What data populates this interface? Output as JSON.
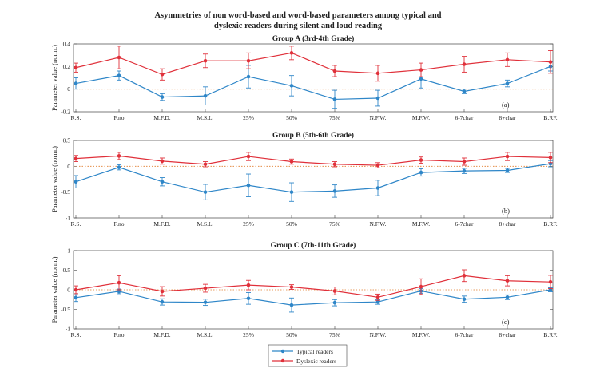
{
  "title_line1": "Asymmetries of non word-based and word-based parameters among typical and",
  "title_line2": "dyslexic readers during silent and loud reading",
  "colors": {
    "typical": "#2e86c8",
    "dyslexic": "#e0303a",
    "zero_line": "#e07b2a"
  },
  "legend": {
    "typical": "Typical readers",
    "dyslexic": "Dyslexic readers"
  },
  "chart_data": [
    {
      "type": "line",
      "title": "Group A (3rd-4th Grade)",
      "panel_label": "(a)",
      "ylabel": "Parameter value (norm.)",
      "ylim": [
        -0.2,
        0.4
      ],
      "yticks": [
        "-0.2",
        "0",
        "0.2",
        "0.4"
      ],
      "ytick_values": [
        -0.2,
        0,
        0.2,
        0.4
      ],
      "categories": [
        "R.S.",
        "F.no",
        "M.F.D.",
        "M.S.L.",
        "25%",
        "50%",
        "75%",
        "N.F.W.",
        "M.F.W.",
        "6-7char",
        "8+char",
        "B.RF."
      ],
      "series": [
        {
          "name": "Typical readers",
          "values": [
            0.05,
            0.12,
            -0.07,
            -0.06,
            0.11,
            0.03,
            -0.09,
            -0.08,
            0.09,
            -0.02,
            0.05,
            0.2
          ],
          "errors": [
            0.05,
            0.04,
            0.03,
            0.08,
            0.1,
            0.09,
            0.08,
            0.07,
            0.08,
            0.02,
            0.03,
            0.04
          ]
        },
        {
          "name": "Dyslexic readers",
          "values": [
            0.19,
            0.28,
            0.13,
            0.25,
            0.25,
            0.32,
            0.16,
            0.14,
            0.17,
            0.22,
            0.26,
            0.24
          ],
          "errors": [
            0.04,
            0.1,
            0.05,
            0.06,
            0.07,
            0.06,
            0.05,
            0.07,
            0.06,
            0.07,
            0.06,
            0.1
          ]
        }
      ]
    },
    {
      "type": "line",
      "title": "Group B (5th-6th Grade)",
      "panel_label": "(b)",
      "ylabel": "Parameter value (norm.)",
      "ylim": [
        -1,
        0.5
      ],
      "yticks": [
        "-1",
        "-0.5",
        "0",
        "0.5"
      ],
      "ytick_values": [
        -1,
        -0.5,
        0,
        0.5
      ],
      "categories": [
        "R.S.",
        "F.no",
        "M.F.D.",
        "M.S.L.",
        "25%",
        "50%",
        "75%",
        "N.F.W.",
        "M.F.W.",
        "6-7char",
        "8+char",
        "B.RF."
      ],
      "series": [
        {
          "name": "Typical readers",
          "values": [
            -0.3,
            -0.02,
            -0.3,
            -0.5,
            -0.37,
            -0.5,
            -0.48,
            -0.42,
            -0.12,
            -0.09,
            -0.08,
            0.05
          ],
          "errors": [
            0.12,
            0.05,
            0.08,
            0.15,
            0.22,
            0.18,
            0.12,
            0.15,
            0.07,
            0.05,
            0.04,
            0.06
          ]
        },
        {
          "name": "Dyslexic readers",
          "values": [
            0.15,
            0.2,
            0.1,
            0.04,
            0.19,
            0.09,
            0.04,
            0.02,
            0.12,
            0.09,
            0.19,
            0.17
          ],
          "errors": [
            0.06,
            0.07,
            0.06,
            0.05,
            0.08,
            0.05,
            0.05,
            0.05,
            0.06,
            0.07,
            0.08,
            0.1
          ]
        }
      ]
    },
    {
      "type": "line",
      "title": "Group C (7th-11th Grade)",
      "panel_label": "(c)",
      "ylabel": "Parameter value (norm.)",
      "ylim": [
        -1,
        1
      ],
      "yticks": [
        "-1",
        "-0.5",
        "0",
        "0.5",
        "1"
      ],
      "ytick_values": [
        -1,
        -0.5,
        0,
        0.5,
        1
      ],
      "categories": [
        "R.S.",
        "F.no",
        "M.F.D.",
        "M.S.L.",
        "25%",
        "50%",
        "75%",
        "N.F.W.",
        "M.F.W.",
        "6-7char",
        "8+char",
        "B.RF."
      ],
      "series": [
        {
          "name": "Typical readers",
          "values": [
            -0.2,
            -0.04,
            -0.31,
            -0.32,
            -0.22,
            -0.39,
            -0.33,
            -0.31,
            -0.03,
            -0.24,
            -0.19,
            0.0
          ],
          "errors": [
            0.1,
            0.06,
            0.08,
            0.08,
            0.15,
            0.18,
            0.08,
            0.06,
            0.06,
            0.08,
            0.06,
            0.05
          ]
        },
        {
          "name": "Dyslexic readers",
          "values": [
            0.0,
            0.18,
            -0.04,
            0.04,
            0.12,
            0.07,
            -0.03,
            -0.19,
            0.08,
            0.36,
            0.23,
            0.2
          ],
          "errors": [
            0.1,
            0.18,
            0.12,
            0.1,
            0.12,
            0.06,
            0.1,
            0.08,
            0.2,
            0.15,
            0.13,
            0.17
          ]
        }
      ]
    }
  ]
}
